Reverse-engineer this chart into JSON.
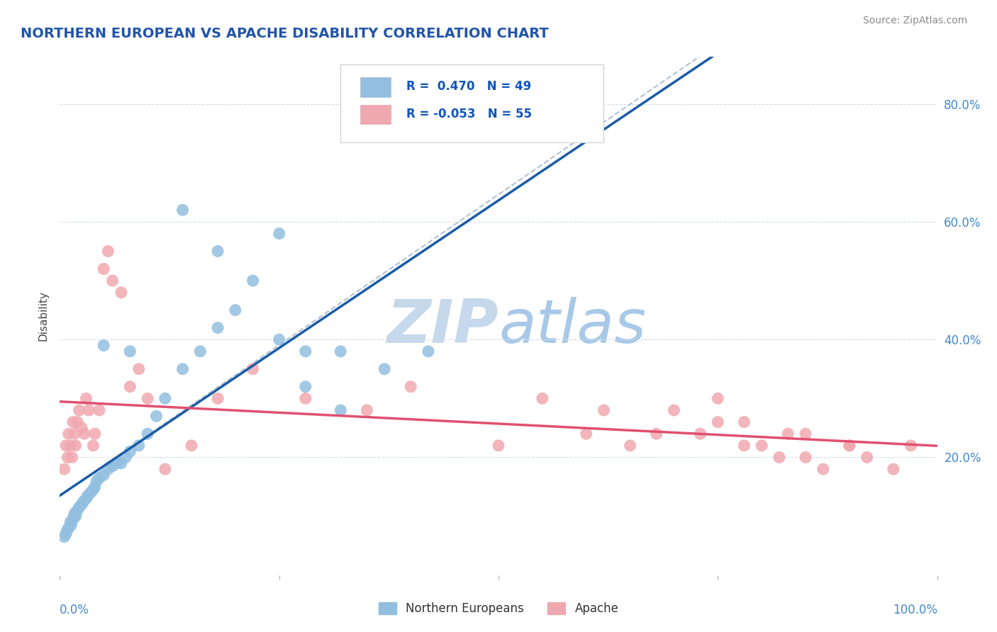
{
  "title": "NORTHERN EUROPEAN VS APACHE DISABILITY CORRELATION CHART",
  "source_text": "Source: ZipAtlas.com",
  "ylabel": "Disability",
  "r_blue": 0.47,
  "n_blue": 49,
  "r_pink": -0.053,
  "n_pink": 55,
  "blue_color": "#92bfe0",
  "pink_color": "#f0a8b0",
  "blue_line_color": "#1a5ca8",
  "pink_line_color": "#e05070",
  "dashed_line_color": "#aabbcc",
  "title_color": "#2255aa",
  "axis_label_color": "#4488cc",
  "legend_r_color": "#1155bb",
  "watermark_color": "#c5d8ec",
  "ylim": [
    0.0,
    0.88
  ],
  "xlim": [
    0.0,
    1.0
  ],
  "yticks": [
    0.0,
    0.2,
    0.4,
    0.6,
    0.8
  ],
  "yticklabels": [
    "",
    "20.0%",
    "40.0%",
    "60.0%",
    "80.0%"
  ],
  "grid_color": "#d0dce8",
  "background_color": "#ffffff",
  "blue_x": [
    0.005,
    0.007,
    0.008,
    0.01,
    0.012,
    0.013,
    0.015,
    0.016,
    0.017,
    0.018,
    0.02,
    0.022,
    0.025,
    0.027,
    0.03,
    0.032,
    0.035,
    0.038,
    0.04,
    0.042,
    0.045,
    0.05,
    0.055,
    0.06,
    0.065,
    0.07,
    0.075,
    0.08,
    0.09,
    0.1,
    0.11,
    0.12,
    0.14,
    0.16,
    0.18,
    0.2,
    0.22,
    0.25,
    0.28,
    0.32,
    0.37,
    0.42,
    0.28,
    0.32,
    0.25,
    0.18,
    0.14,
    0.08,
    0.05
  ],
  "blue_y": [
    0.065,
    0.07,
    0.075,
    0.08,
    0.09,
    0.085,
    0.095,
    0.1,
    0.105,
    0.1,
    0.11,
    0.115,
    0.12,
    0.125,
    0.13,
    0.135,
    0.14,
    0.145,
    0.15,
    0.16,
    0.165,
    0.17,
    0.18,
    0.185,
    0.19,
    0.19,
    0.2,
    0.21,
    0.22,
    0.24,
    0.27,
    0.3,
    0.35,
    0.38,
    0.42,
    0.45,
    0.5,
    0.58,
    0.38,
    0.38,
    0.35,
    0.38,
    0.32,
    0.28,
    0.4,
    0.55,
    0.62,
    0.38,
    0.39
  ],
  "pink_x": [
    0.005,
    0.007,
    0.009,
    0.01,
    0.012,
    0.014,
    0.015,
    0.017,
    0.018,
    0.02,
    0.022,
    0.025,
    0.028,
    0.03,
    0.033,
    0.038,
    0.04,
    0.045,
    0.05,
    0.055,
    0.06,
    0.07,
    0.08,
    0.09,
    0.1,
    0.12,
    0.15,
    0.18,
    0.22,
    0.28,
    0.35,
    0.4,
    0.5,
    0.55,
    0.6,
    0.62,
    0.65,
    0.68,
    0.7,
    0.73,
    0.75,
    0.78,
    0.8,
    0.83,
    0.85,
    0.87,
    0.9,
    0.92,
    0.95,
    0.97,
    0.75,
    0.78,
    0.82,
    0.85,
    0.9
  ],
  "pink_y": [
    0.18,
    0.22,
    0.2,
    0.24,
    0.22,
    0.2,
    0.26,
    0.24,
    0.22,
    0.26,
    0.28,
    0.25,
    0.24,
    0.3,
    0.28,
    0.22,
    0.24,
    0.28,
    0.52,
    0.55,
    0.5,
    0.48,
    0.32,
    0.35,
    0.3,
    0.18,
    0.22,
    0.3,
    0.35,
    0.3,
    0.28,
    0.32,
    0.22,
    0.3,
    0.24,
    0.28,
    0.22,
    0.24,
    0.28,
    0.24,
    0.3,
    0.26,
    0.22,
    0.24,
    0.2,
    0.18,
    0.22,
    0.2,
    0.18,
    0.22,
    0.26,
    0.22,
    0.2,
    0.24,
    0.22
  ]
}
